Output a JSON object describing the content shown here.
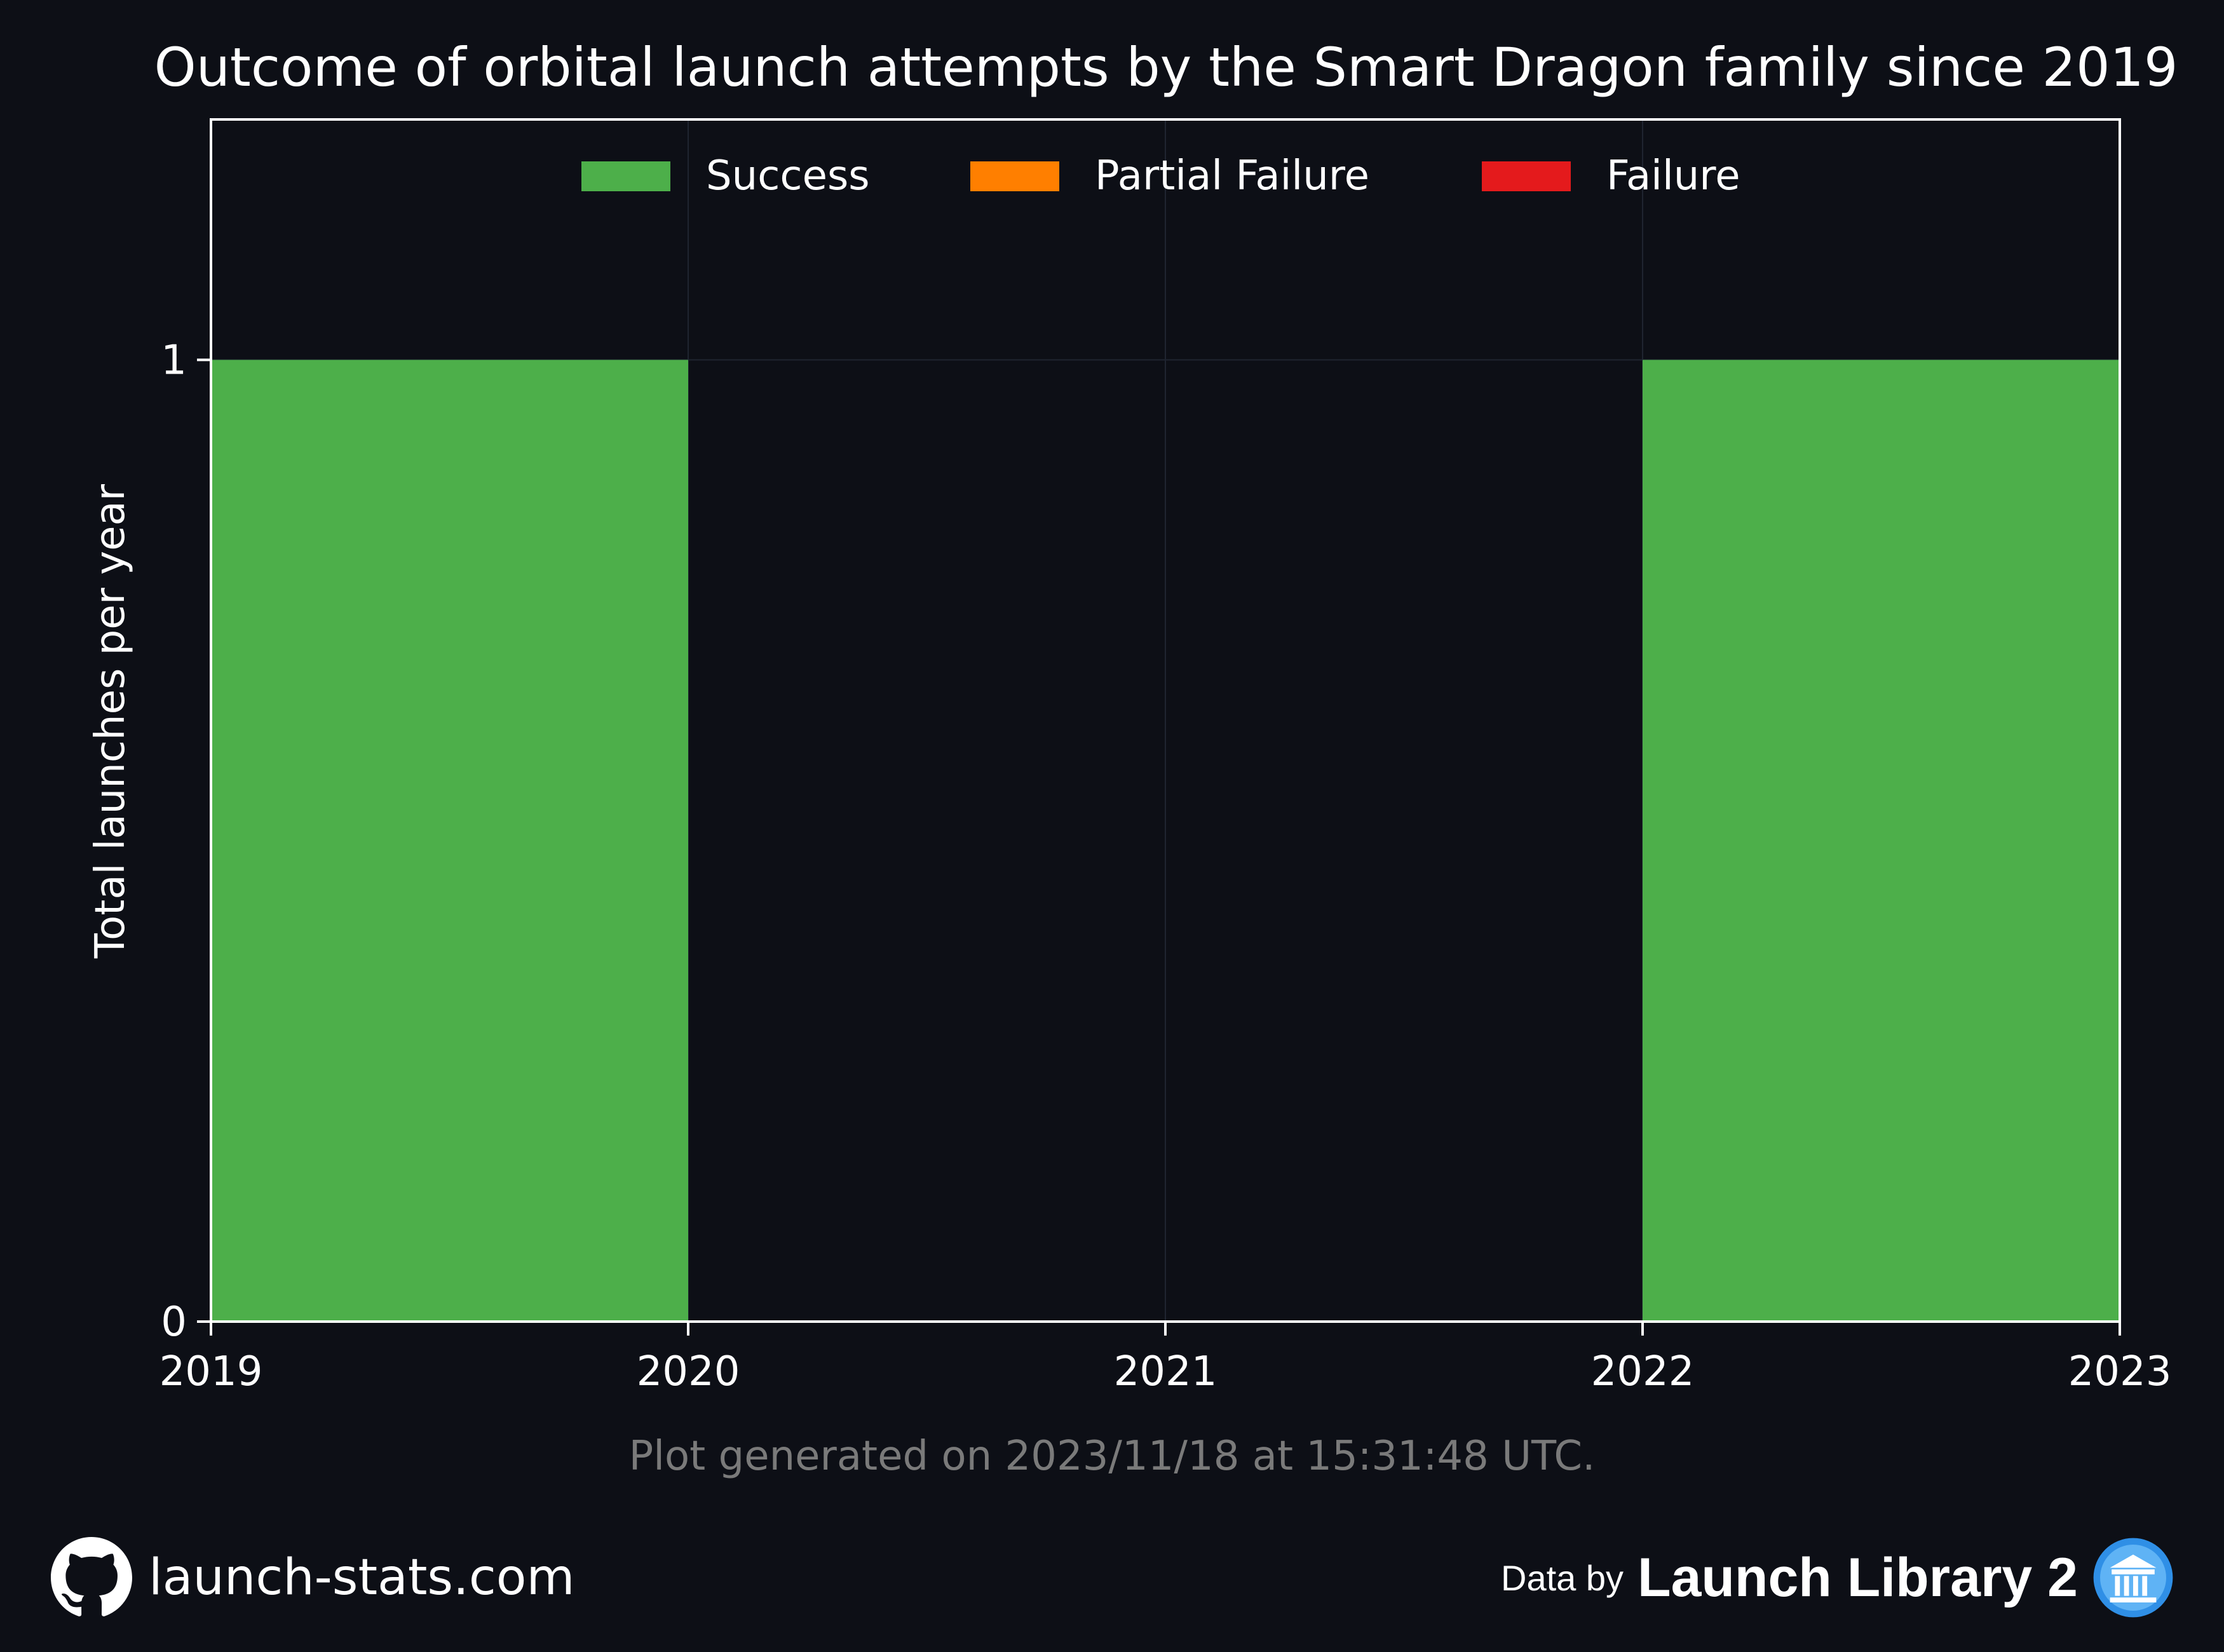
{
  "chart_data": {
    "type": "bar",
    "title": "Outcome of orbital launch attempts by the Smart Dragon family since 2019",
    "ylabel": "Total launches per year",
    "xlabel": "",
    "x_ticks": [
      "2019",
      "2020",
      "2021",
      "2022",
      "2023"
    ],
    "y_ticks": [
      "0",
      "1"
    ],
    "xlim": [
      2019,
      2023
    ],
    "ylim": [
      0,
      1.25
    ],
    "stacked": true,
    "legend_position": "top-center",
    "categories": [
      2019,
      2020,
      2021,
      2022
    ],
    "series": [
      {
        "name": "Success",
        "color": "#4daf4a",
        "values": [
          1,
          0,
          0,
          1
        ]
      },
      {
        "name": "Partial Failure",
        "color": "#ff7f00",
        "values": [
          0,
          0,
          0,
          0
        ]
      },
      {
        "name": "Failure",
        "color": "#e41a1c",
        "values": [
          0,
          0,
          0,
          0
        ]
      }
    ]
  },
  "footer": {
    "generated": "Plot generated on 2023/11/18 at 15:31:48 UTC.",
    "site": "launch-stats.com",
    "data_by": "Data by",
    "library": "Launch Library 2",
    "github_icon": "github-icon",
    "library_icon": "library-icon"
  }
}
